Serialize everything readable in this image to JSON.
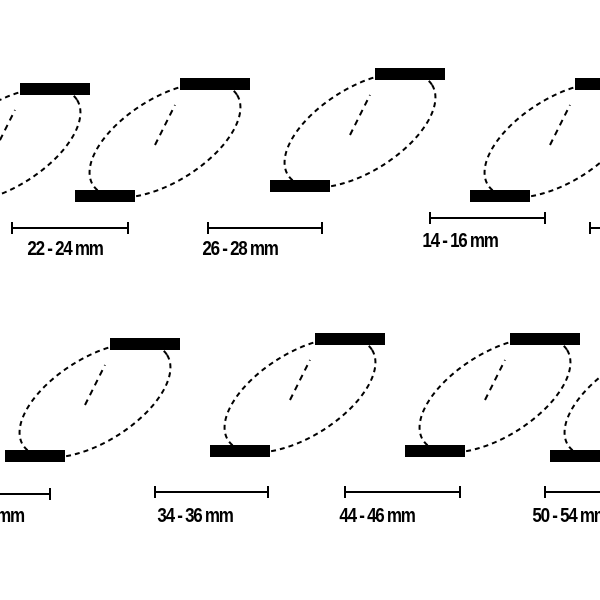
{
  "rings": [
    {
      "label": "22 - 24 mm"
    },
    {
      "label": "26 - 28 mm"
    },
    {
      "label": "14 - 16 mm"
    },
    {
      "label": ""
    },
    {
      "label": "mm"
    },
    {
      "label": "34 - 36 mm"
    },
    {
      "label": "44 - 46 mm"
    },
    {
      "label": "50 - 54 mm"
    }
  ],
  "colors": {
    "stroke": "#000000",
    "background": "#ffffff"
  }
}
